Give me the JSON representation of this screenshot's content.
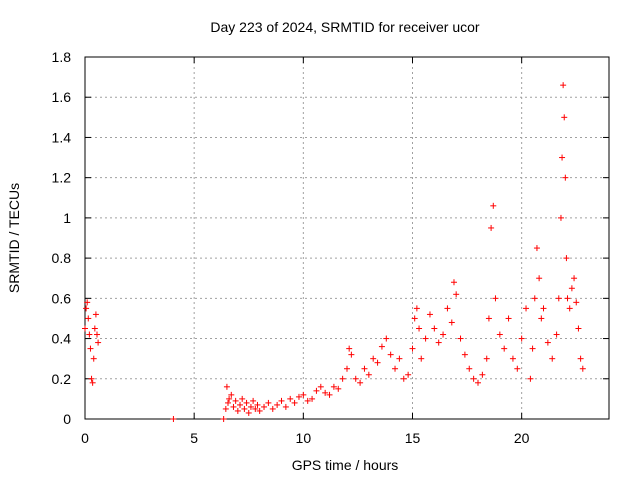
{
  "chart_data": {
    "type": "scatter",
    "title": "Day 223 of 2024, SRMTID for receiver ucor",
    "xlabel": "GPS time / hours",
    "ylabel": "SRMTID / TECUs",
    "xlim": [
      0,
      24
    ],
    "ylim": [
      0,
      1.8
    ],
    "xticks": [
      0,
      5,
      10,
      15,
      20
    ],
    "xtick_labels": [
      "0",
      "5",
      "10",
      "15",
      "20"
    ],
    "yticks": [
      0,
      0.2,
      0.4,
      0.6,
      0.8,
      1.0,
      1.2,
      1.4,
      1.6,
      1.8
    ],
    "ytick_labels": [
      "0",
      "0.2",
      "0.4",
      "0.6",
      "0.8",
      "1",
      "1.2",
      "1.4",
      "1.6",
      "1.8"
    ],
    "grid": true,
    "marker": "+",
    "color": "#ff0000",
    "series": [
      {
        "name": "SRMTID",
        "x": [
          0.0,
          0.05,
          0.1,
          0.15,
          0.2,
          0.25,
          0.3,
          0.35,
          0.4,
          0.45,
          0.5,
          0.55,
          0.6,
          4.05,
          6.35,
          6.45,
          6.5,
          6.55,
          6.6,
          6.7,
          6.8,
          6.9,
          7.0,
          7.1,
          7.2,
          7.3,
          7.4,
          7.5,
          7.6,
          7.7,
          7.8,
          7.9,
          8.0,
          8.2,
          8.4,
          8.6,
          8.8,
          9.0,
          9.2,
          9.4,
          9.6,
          9.8,
          10.0,
          10.2,
          10.4,
          10.6,
          10.8,
          11.0,
          11.2,
          11.4,
          11.6,
          11.8,
          12.0,
          12.1,
          12.2,
          12.4,
          12.6,
          12.8,
          13.0,
          13.2,
          13.4,
          13.6,
          13.8,
          14.0,
          14.2,
          14.4,
          14.6,
          14.8,
          15.0,
          15.1,
          15.2,
          15.3,
          15.4,
          15.6,
          15.8,
          16.0,
          16.2,
          16.4,
          16.6,
          16.8,
          16.9,
          17.0,
          17.2,
          17.4,
          17.6,
          17.8,
          18.0,
          18.2,
          18.4,
          18.5,
          18.6,
          18.7,
          18.8,
          19.0,
          19.2,
          19.4,
          19.6,
          19.8,
          20.0,
          20.2,
          20.4,
          20.5,
          20.6,
          20.7,
          20.8,
          20.9,
          21.0,
          21.2,
          21.4,
          21.6,
          21.7,
          21.8,
          21.85,
          21.9,
          21.95,
          22.0,
          22.05,
          22.1,
          22.2,
          22.3,
          22.4,
          22.5,
          22.6,
          22.7,
          22.8
        ],
        "y": [
          0.45,
          0.55,
          0.58,
          0.5,
          0.42,
          0.35,
          0.2,
          0.18,
          0.3,
          0.45,
          0.52,
          0.42,
          0.38,
          0.0,
          0.0,
          0.05,
          0.16,
          0.08,
          0.1,
          0.12,
          0.06,
          0.09,
          0.04,
          0.07,
          0.1,
          0.05,
          0.08,
          0.03,
          0.06,
          0.09,
          0.05,
          0.07,
          0.04,
          0.06,
          0.08,
          0.05,
          0.07,
          0.09,
          0.06,
          0.1,
          0.08,
          0.11,
          0.12,
          0.09,
          0.1,
          0.14,
          0.16,
          0.13,
          0.12,
          0.16,
          0.15,
          0.2,
          0.25,
          0.35,
          0.32,
          0.2,
          0.18,
          0.25,
          0.22,
          0.3,
          0.28,
          0.36,
          0.4,
          0.32,
          0.25,
          0.3,
          0.2,
          0.22,
          0.35,
          0.5,
          0.55,
          0.45,
          0.3,
          0.4,
          0.52,
          0.45,
          0.38,
          0.42,
          0.55,
          0.48,
          0.68,
          0.62,
          0.4,
          0.32,
          0.25,
          0.2,
          0.18,
          0.22,
          0.3,
          0.5,
          0.95,
          1.06,
          0.6,
          0.42,
          0.35,
          0.5,
          0.3,
          0.25,
          0.4,
          0.55,
          0.2,
          0.35,
          0.6,
          0.85,
          0.7,
          0.5,
          0.55,
          0.38,
          0.3,
          0.42,
          0.6,
          1.0,
          1.3,
          1.66,
          1.5,
          1.2,
          0.8,
          0.6,
          0.55,
          0.65,
          0.7,
          0.58,
          0.45,
          0.3,
          0.25
        ]
      }
    ]
  }
}
